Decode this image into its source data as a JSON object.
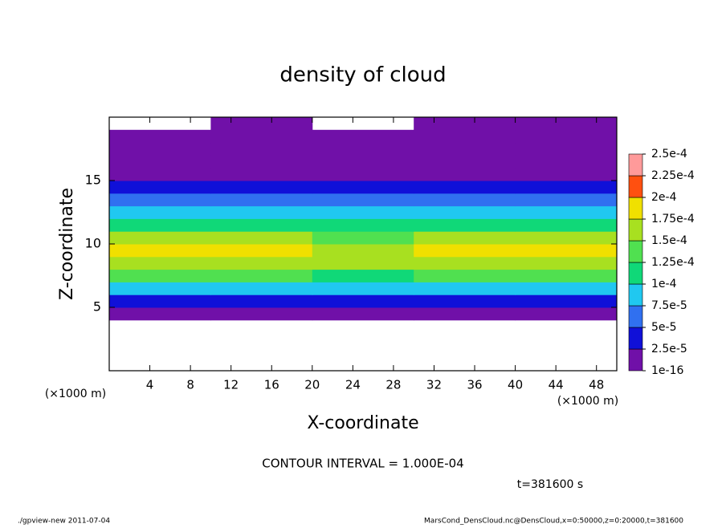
{
  "chart_data": {
    "type": "heatmap",
    "title": "density of cloud",
    "x_label": "X-coordinate",
    "y_label": "Z-coordinate",
    "x_unit": "(×1000 m)",
    "y_unit": "(×1000 m)",
    "note": "CONTOUR INTERVAL = 1.000E-04",
    "time_label": "t=381600 s",
    "footer_left": "./gpview-new  2011-07-04",
    "footer_right": "MarsCond_DensCloud.nc@DensCloud,x=0:50000,z=0:20000,t=381600",
    "xlim": [
      0,
      50
    ],
    "ylim": [
      0,
      20
    ],
    "xticks": [
      4,
      8,
      12,
      16,
      20,
      24,
      28,
      32,
      36,
      40,
      44,
      48
    ],
    "yticks": [
      5,
      10,
      15
    ],
    "x_bins": [
      0,
      10,
      20,
      30,
      40,
      50
    ],
    "z_bins": [
      4,
      5,
      6,
      7,
      8,
      9,
      10,
      11,
      12,
      13,
      14,
      15,
      16,
      17,
      18,
      19,
      20
    ],
    "values": [
      [
        1e-05,
        1e-05,
        1e-05,
        1e-05,
        1e-05
      ],
      [
        4e-05,
        4e-05,
        4e-05,
        4e-05,
        4e-05
      ],
      [
        9e-05,
        9e-05,
        8e-05,
        9e-05,
        9e-05
      ],
      [
        0.00013,
        0.00013,
        0.00012,
        0.00013,
        0.00013
      ],
      [
        0.00016,
        0.00016,
        0.00015,
        0.00016,
        0.00016
      ],
      [
        0.00018,
        0.00019,
        0.00016,
        0.00019,
        0.00018
      ],
      [
        0.00016,
        0.00017,
        0.00014,
        0.00016,
        0.00016
      ],
      [
        0.00012,
        0.00012,
        0.00011,
        0.00012,
        0.00012
      ],
      [
        8e-05,
        8e-05,
        8e-05,
        8e-05,
        8e-05
      ],
      [
        5e-05,
        5e-05,
        5e-05,
        5e-05,
        5e-05
      ],
      [
        3.5e-05,
        3.5e-05,
        3.5e-05,
        3.5e-05,
        3.5e-05
      ],
      [
        2e-05,
        2e-05,
        2e-05,
        2e-05,
        2e-05
      ],
      [
        1.5e-05,
        1.5e-05,
        1.5e-05,
        1.5e-05,
        1.5e-05
      ],
      [
        5e-06,
        5e-06,
        5e-06,
        5e-06,
        5e-06
      ],
      [
        3e-06,
        3e-06,
        3e-06,
        3e-06,
        3e-06
      ],
      [
        null,
        1e-06,
        null,
        1e-06,
        1e-06
      ]
    ],
    "levels": [
      {
        "value": 1e-16,
        "label": "1e-16"
      },
      {
        "value": 2.5e-05,
        "label": "2.5e-5"
      },
      {
        "value": 5e-05,
        "label": "5e-5"
      },
      {
        "value": 7.5e-05,
        "label": "7.5e-5"
      },
      {
        "value": 0.0001,
        "label": "1e-4"
      },
      {
        "value": 0.000125,
        "label": "1.25e-4"
      },
      {
        "value": 0.00015,
        "label": "1.5e-4"
      },
      {
        "value": 0.000175,
        "label": "1.75e-4"
      },
      {
        "value": 0.0002,
        "label": "2e-4"
      },
      {
        "value": 0.000225,
        "label": "2.25e-4"
      },
      {
        "value": 0.00025,
        "label": "2.5e-4"
      }
    ],
    "colors": [
      "#7010a8",
      "#1010d8",
      "#3070f0",
      "#20c8f0",
      "#10d878",
      "#50e050",
      "#a8e020",
      "#f0e000",
      "#ff5010",
      "#ff9a9a"
    ]
  }
}
